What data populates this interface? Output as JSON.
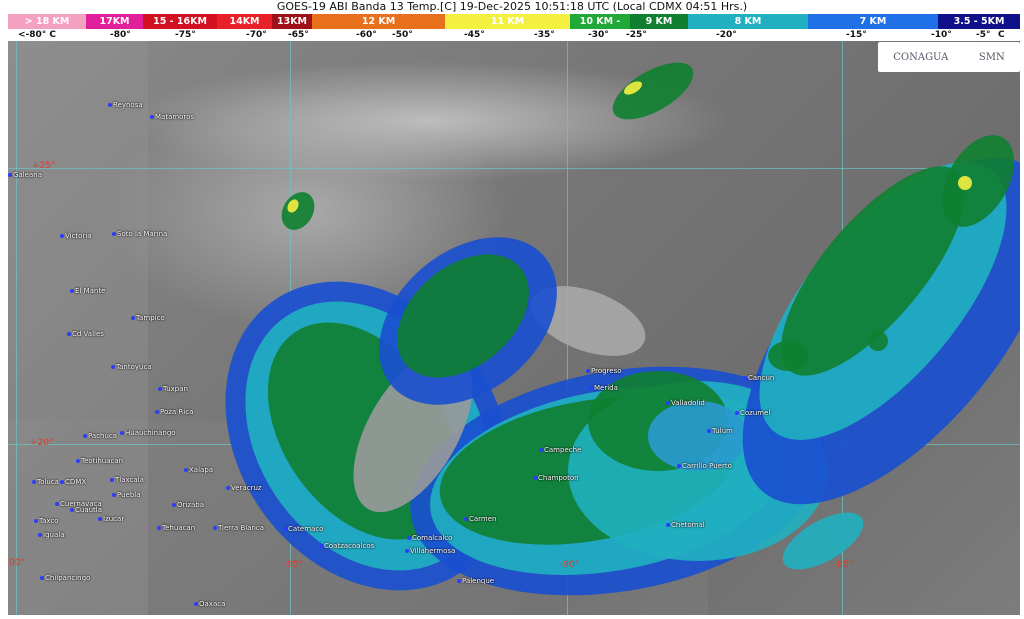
{
  "title": "GOES-19 ABI Banda 13 Temp.[C] 19-Dec-2025 10:51:18 UTC (Local CDMX  04:51 Hrs.)",
  "scale": [
    {
      "label": "> 18 KM",
      "color": "#f4a0c0"
    },
    {
      "label": "17KM",
      "color": "#e0209a"
    },
    {
      "label": "15 - 16KM",
      "color": "#d21020"
    },
    {
      "label": "14KM",
      "color": "#e8202a"
    },
    {
      "label": "13KM",
      "color": "#a01018"
    },
    {
      "label": "12 KM",
      "color": "#e8701c"
    },
    {
      "label": "11 KM",
      "color": "#f4f040"
    },
    {
      "label": "10 KM -",
      "color": "#20a838"
    },
    {
      "label": "9 KM",
      "color": "#108030"
    },
    {
      "label": "8 KM",
      "color": "#20b0c0"
    },
    {
      "label": "7 KM",
      "color": "#2070e8"
    },
    {
      "label": "3.5 - 5KM",
      "color": "#10108a"
    }
  ],
  "temps": [
    "<-80° C",
    "-80°",
    "-75°",
    "-70°",
    "-65°",
    "-60°",
    "-50°",
    "-45°",
    "-35°",
    "-30°",
    "-25°",
    "-20°",
    "-15°",
    "-10°",
    "-5°",
    "C"
  ],
  "coords": [
    "+25°",
    "+20°",
    "-100°",
    "-95°",
    "-90°",
    "-85°"
  ],
  "logos": {
    "left": "CONAGUA",
    "right": "SMN"
  },
  "cities": [
    "Reynosa",
    "Matamoros",
    "Galeana",
    "Victoria",
    "Soto la Marina",
    "El Mante",
    "Tampico",
    "Cd Valles",
    "Tantoyuca",
    "Tuxpan",
    "Poza Rica",
    "Pachuca",
    "Huauchinango",
    "Teotihuacan",
    "Toluca",
    "CDMX",
    "Tlaxcala",
    "Puebla",
    "Cuernavaca",
    "Cuautla",
    "Taxco",
    "Iguala",
    "Izucar",
    "Chilpancingo",
    "Oaxaca",
    "Tehuacan",
    "Orizaba",
    "Xalapa",
    "Veracruz",
    "Tierra Blanca",
    "Catemaco",
    "Coatzacoalcos",
    "Comalcalco",
    "Villahermosa",
    "Palenque",
    "Carmen",
    "Champoton",
    "Campeche",
    "Progreso",
    "Merida",
    "Valladolid",
    "Tulum",
    "Carrillo Puerto",
    "Chetomal",
    "Cozumel",
    "Cancun"
  ]
}
